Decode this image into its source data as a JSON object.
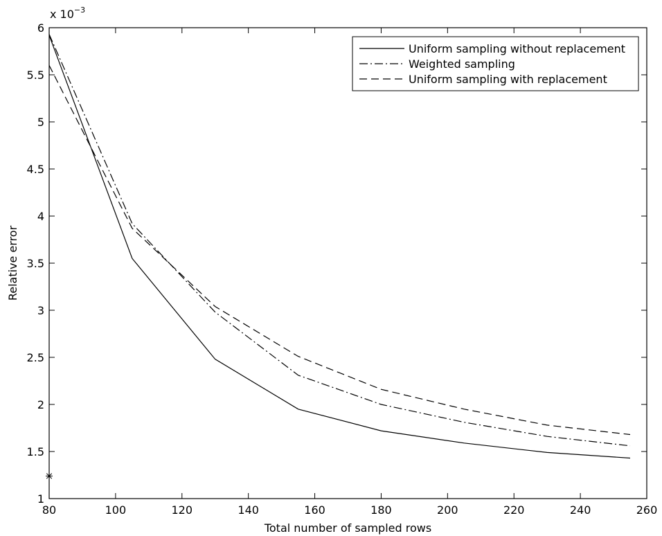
{
  "chart_data": {
    "type": "line",
    "title": "",
    "xlabel": "Total number of sampled rows",
    "ylabel": "Relative error",
    "y_scale_label": "x 10",
    "y_scale_exponent": "−3",
    "xlim": [
      80,
      260
    ],
    "ylim": [
      1,
      6
    ],
    "xticks": [
      80,
      100,
      120,
      140,
      160,
      180,
      200,
      220,
      240,
      260
    ],
    "xtick_labels": [
      "80",
      "100",
      "120",
      "140",
      "160",
      "180",
      "200",
      "220",
      "240",
      "260"
    ],
    "yticks": [
      1,
      1.5,
      2,
      2.5,
      3,
      3.5,
      4,
      4.5,
      5,
      5.5,
      6
    ],
    "ytick_labels": [
      "1",
      "1.5",
      "2",
      "2.5",
      "3",
      "3.5",
      "4",
      "4.5",
      "5",
      "5.5",
      "6"
    ],
    "grid": false,
    "legend_position": "top-right",
    "x": [
      80,
      105,
      130,
      155,
      180,
      205,
      230,
      255
    ],
    "series": [
      {
        "name": "Uniform sampling without replacement",
        "style": "solid",
        "color": "#000000",
        "values": [
          5.92,
          3.55,
          2.48,
          1.95,
          1.72,
          1.59,
          1.49,
          1.43
        ]
      },
      {
        "name": "Weighted sampling",
        "style": "dashdot",
        "color": "#000000",
        "values": [
          5.93,
          3.92,
          2.98,
          2.31,
          2.0,
          1.81,
          1.66,
          1.56
        ]
      },
      {
        "name": "Uniform sampling with replacement",
        "style": "dashed",
        "color": "#000000",
        "values": [
          5.6,
          3.87,
          3.04,
          2.51,
          2.16,
          1.95,
          1.78,
          1.68
        ]
      }
    ],
    "markers": [
      {
        "x": 80,
        "y": 1.24,
        "symbol": "*"
      }
    ]
  }
}
